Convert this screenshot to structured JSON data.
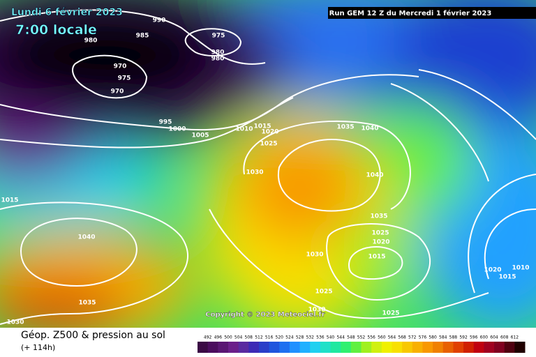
{
  "header": {
    "date": "Lundi 6 février 2023",
    "time": "7:00 locale",
    "run": "Run GEM 12 Z du Mercredi 1 février 2023"
  },
  "isobar_labels": [
    "990",
    "985",
    "980",
    "975",
    "980",
    "980",
    "970",
    "975",
    "970",
    "995",
    "1000",
    "1005",
    "1010",
    "1015",
    "1020",
    "1025",
    "1030",
    "1035",
    "1040",
    "1040",
    "1035",
    "1025",
    "1020",
    "1015",
    "1030",
    "1025",
    "1030",
    "1025",
    "1040",
    "1035",
    "1030",
    "1015",
    "1020",
    "1010",
    "1015"
  ],
  "copyright": "Copyright © 2023 Meteociel.fr",
  "footer": {
    "title": "Géop. Z500 & pression au sol",
    "lead": "(+ 114h)"
  },
  "colorbar": {
    "labels": [
      "492",
      "496",
      "500",
      "504",
      "508",
      "512",
      "516",
      "520",
      "524",
      "528",
      "532",
      "536",
      "540",
      "544",
      "548",
      "552",
      "556",
      "560",
      "564",
      "568",
      "572",
      "576",
      "580",
      "584",
      "588",
      "592",
      "596",
      "600",
      "604",
      "608",
      "612"
    ],
    "colors": [
      "#3b0a45",
      "#4b0d5e",
      "#5a1673",
      "#6b1f8a",
      "#5a2aa0",
      "#3d2ab5",
      "#2a3ec8",
      "#1f55dd",
      "#1f6ff0",
      "#2090ff",
      "#20b0ff",
      "#20d0f0",
      "#20e0c8",
      "#20e8a0",
      "#30f070",
      "#60f040",
      "#a0f020",
      "#d0f010",
      "#f0f000",
      "#f8e000",
      "#f8c800",
      "#f8b000",
      "#f89800",
      "#f08000",
      "#e86000",
      "#e04000",
      "#d02000",
      "#c00010",
      "#a00020",
      "#800020",
      "#500010",
      "#200000"
    ]
  }
}
